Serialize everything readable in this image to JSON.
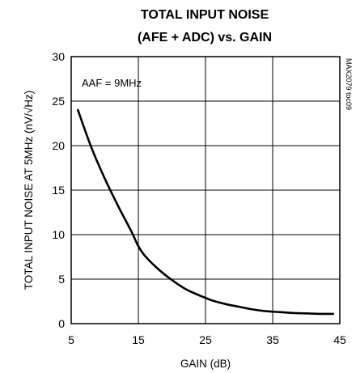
{
  "chart_data": {
    "type": "line",
    "title_line1": "TOTAL INPUT NOISE",
    "title_line2": "(AFE + ADC) vs. GAIN",
    "xlabel": "GAIN (dB)",
    "ylabel": "TOTAL INPUT NOISE AT 5MHz (nV/√Hz)",
    "annotation": "AAF = 9MHz",
    "side_label": "MAX2079 toc09",
    "xlim": [
      5,
      45
    ],
    "ylim": [
      0,
      30
    ],
    "x_ticks": [
      "5",
      "15",
      "25",
      "35",
      "45"
    ],
    "y_ticks": [
      "0",
      "5",
      "10",
      "15",
      "20",
      "25",
      "30"
    ],
    "grid": true,
    "series": [
      {
        "x": [
          6,
          8,
          10,
          12,
          14,
          15,
          16,
          18,
          20,
          22,
          24,
          25,
          26,
          28,
          30,
          32,
          34,
          36,
          38,
          40,
          42,
          44
        ],
        "y": [
          24.0,
          19.8,
          16.3,
          13.2,
          10.3,
          8.7,
          7.6,
          6.1,
          4.9,
          3.9,
          3.2,
          2.9,
          2.6,
          2.2,
          1.9,
          1.6,
          1.4,
          1.3,
          1.2,
          1.15,
          1.1,
          1.1
        ]
      }
    ]
  }
}
